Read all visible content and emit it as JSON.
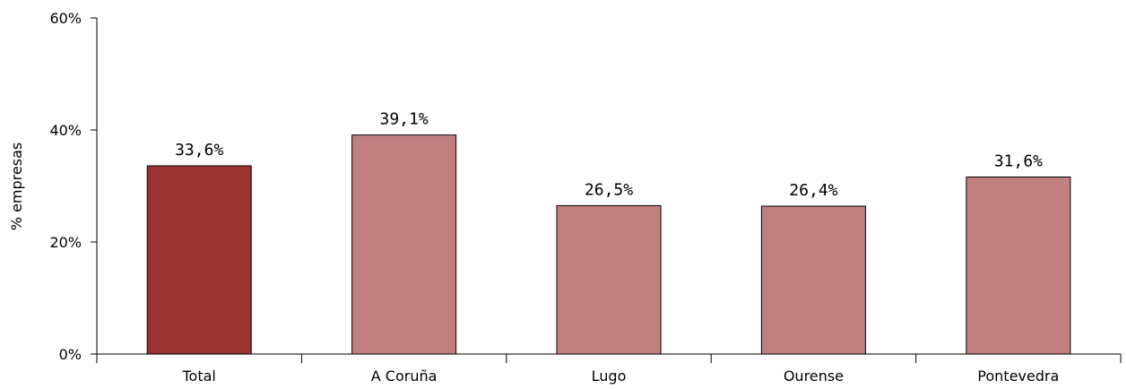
{
  "chart_data": {
    "type": "bar",
    "categories": [
      "Total",
      "A Coruña",
      "Lugo",
      "Ourense",
      "Pontevedra"
    ],
    "values": [
      33.6,
      39.1,
      26.5,
      26.4,
      31.6
    ],
    "data_labels": [
      "33,6%",
      "39,1%",
      "26,5%",
      "26,4%",
      "31,6%"
    ],
    "ylabel": "% empresas",
    "ylim": [
      0,
      60
    ],
    "y_ticks": [
      0,
      20,
      40,
      60
    ],
    "y_tick_labels": [
      "0%",
      "20%",
      "40%",
      "60%"
    ],
    "grid": false,
    "colors": {
      "highlight": "#993333",
      "bar": "#C08080",
      "axis": "#000000"
    },
    "highlight_index": 0
  }
}
